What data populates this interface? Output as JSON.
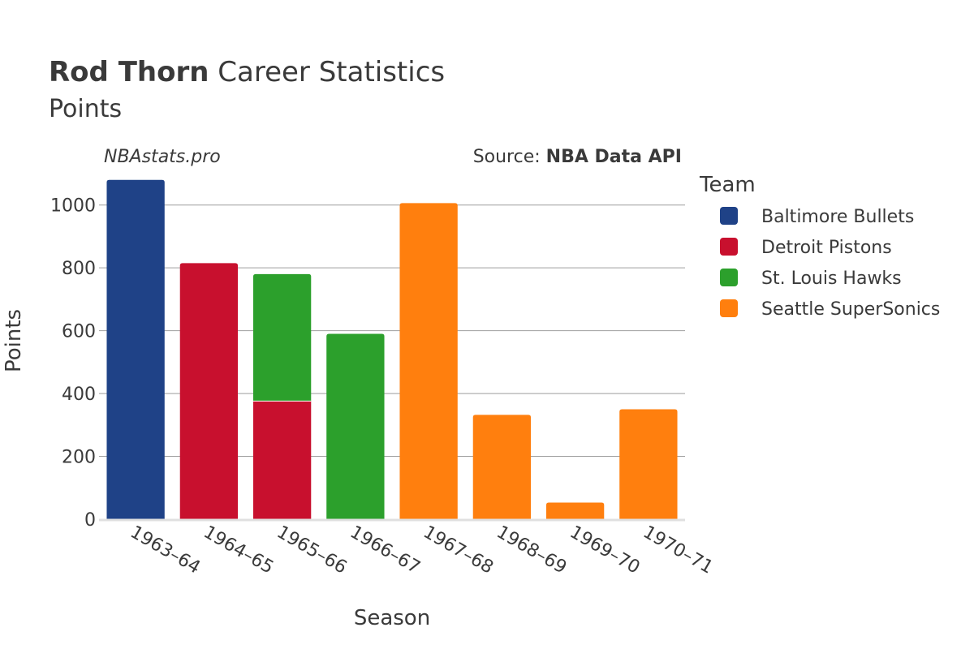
{
  "header": {
    "player": "Rod Thorn",
    "title_rest": " Career Statistics",
    "subtitle": "Points",
    "watermark": "NBAstats.pro",
    "source_prefix": "Source: ",
    "source_name": "NBA Data API"
  },
  "legend": {
    "title": "Team",
    "items": [
      {
        "label": "Baltimore Bullets",
        "color": "#1f4287"
      },
      {
        "label": "Detroit Pistons",
        "color": "#c8102e"
      },
      {
        "label": "St. Louis Hawks",
        "color": "#2ca02c"
      },
      {
        "label": "Seattle SuperSonics",
        "color": "#ff7f0e"
      }
    ]
  },
  "chart_data": {
    "type": "bar",
    "stacked": true,
    "xlabel": "Season",
    "ylabel": "Points",
    "ylim": [
      0,
      1100
    ],
    "yticks": [
      0,
      200,
      400,
      600,
      800,
      1000
    ],
    "categories": [
      "1963–64",
      "1964–65",
      "1965–66",
      "1966–67",
      "1967–68",
      "1968–69",
      "1969–70",
      "1970–71"
    ],
    "series": [
      {
        "name": "Baltimore Bullets",
        "color": "#1f4287",
        "values": [
          1080,
          0,
          0,
          0,
          0,
          0,
          0,
          0
        ]
      },
      {
        "name": "Detroit Pistons",
        "color": "#c8102e",
        "values": [
          0,
          815,
          376,
          0,
          0,
          0,
          0,
          0
        ]
      },
      {
        "name": "St. Louis Hawks",
        "color": "#2ca02c",
        "values": [
          0,
          0,
          404,
          590,
          0,
          0,
          0,
          0
        ]
      },
      {
        "name": "Seattle SuperSonics",
        "color": "#ff7f0e",
        "values": [
          0,
          0,
          0,
          0,
          1006,
          332,
          53,
          350
        ]
      }
    ]
  }
}
